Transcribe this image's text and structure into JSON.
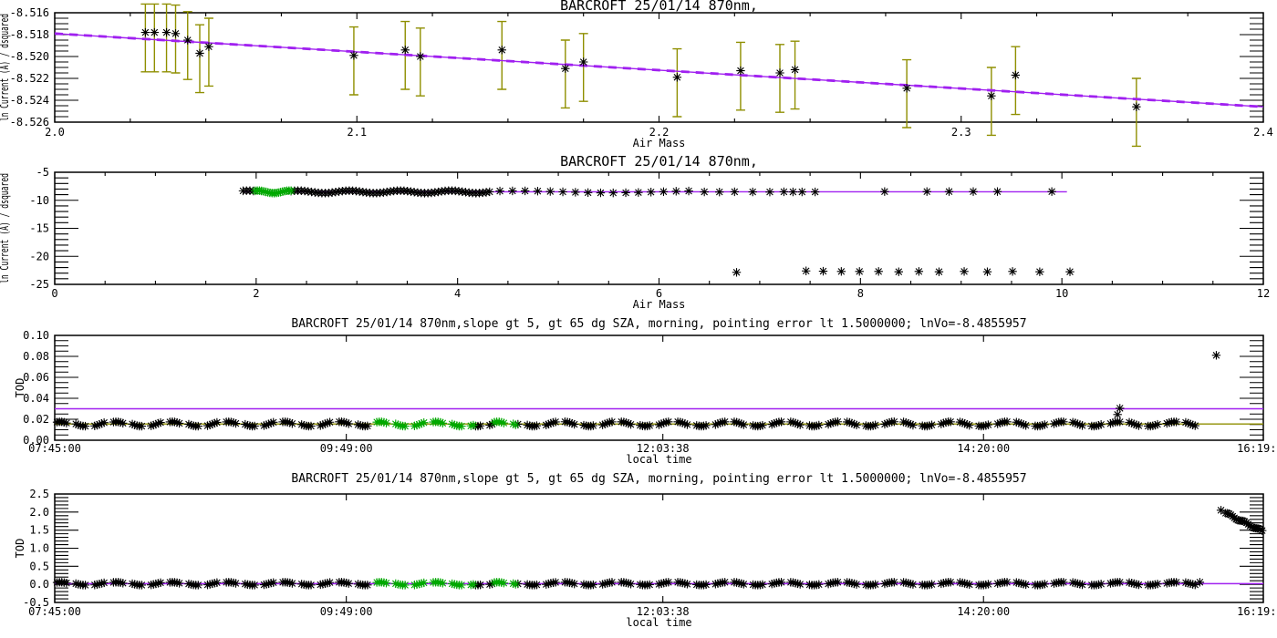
{
  "page": {
    "background": "#ffffff"
  },
  "colors": {
    "black": "#000000",
    "purple": "#A020F0",
    "olive": "#8F8F00",
    "green": "#00A800",
    "axis": "#000000",
    "background": "#FFFFFF"
  },
  "chart_data": [
    {
      "id": "langley-fit",
      "type": "scatter",
      "title": "BARCROFT 25/01/14 870nm,",
      "xlabel": "Air Mass",
      "ylabel": "ln Current (A) / dsquared",
      "xlim": [
        2.0,
        2.4
      ],
      "ylim": [
        -8.526,
        -8.516
      ],
      "xticks": {
        "values": [
          2.0,
          2.1,
          2.2,
          2.3,
          2.4
        ],
        "labels": [
          "2.0",
          "2.1",
          "2.2",
          "2.3",
          "2.4"
        ],
        "minor": 0.025
      },
      "yticks": {
        "values": [
          -8.526,
          -8.524,
          -8.522,
          -8.52,
          -8.518,
          -8.516
        ],
        "labels": [
          "-8.526",
          "-8.524",
          "-8.522",
          "-8.520",
          "-8.518",
          "-8.516"
        ],
        "minor": 0.0005
      },
      "ref_lines": [
        {
          "x": [
            2.0,
            2.4
          ],
          "y": [
            -8.5179,
            -8.5246
          ],
          "color_key": "purple",
          "dash": true
        }
      ],
      "series": [
        {
          "name": "langley-points",
          "color_key": "black",
          "marker": "asterisk",
          "error_bars": {
            "up": 0.0026,
            "down": 0.0036,
            "color_key": "olive"
          },
          "points": [
            [
              2.03,
              -8.5178
            ],
            [
              2.033,
              -8.5178
            ],
            [
              2.037,
              -8.5178
            ],
            [
              2.04,
              -8.5179
            ],
            [
              2.044,
              -8.5185
            ],
            [
              2.048,
              -8.5197
            ],
            [
              2.051,
              -8.5191
            ],
            [
              2.099,
              -8.5199
            ],
            [
              2.116,
              -8.5194
            ],
            [
              2.121,
              -8.52
            ],
            [
              2.148,
              -8.5194
            ],
            [
              2.169,
              -8.5211
            ],
            [
              2.175,
              -8.5205
            ],
            [
              2.206,
              -8.5219
            ],
            [
              2.227,
              -8.5213
            ],
            [
              2.24,
              -8.5215
            ],
            [
              2.245,
              -8.5212
            ],
            [
              2.282,
              -8.5229
            ],
            [
              2.31,
              -8.5236
            ],
            [
              2.318,
              -8.5217
            ],
            [
              2.358,
              -8.5246
            ]
          ]
        }
      ]
    },
    {
      "id": "langley-all",
      "type": "scatter",
      "title": "BARCROFT 25/01/14 870nm,",
      "xlabel": "Air Mass",
      "ylabel": "ln Current (A) / dsquared",
      "xlim": [
        0,
        12
      ],
      "ylim": [
        -25,
        -5
      ],
      "xticks": {
        "values": [
          0,
          2,
          4,
          6,
          8,
          10,
          12
        ],
        "labels": [
          "0",
          "2",
          "4",
          "6",
          "8",
          "10",
          "12"
        ],
        "minor": 0.5
      },
      "yticks": {
        "values": [
          -25,
          -20,
          -15,
          -10,
          -5
        ],
        "labels": [
          "-25",
          "-20",
          "-15",
          "-10",
          "-5"
        ],
        "minor": 1
      },
      "ref_lines": [
        {
          "x": [
            1.87,
            10.05
          ],
          "y": [
            -8.49,
            -8.49
          ],
          "color_key": "purple"
        }
      ],
      "series": [
        {
          "name": "all-points",
          "color_key": "black",
          "marker": "asterisk",
          "clusters": [
            {
              "x0": 1.87,
              "x1": 4.35,
              "step": 0.034,
              "y": -8.5,
              "jitter": 0.22,
              "exclude": [
                [
                  1.99,
                  2.345
                ]
              ]
            },
            {
              "x0": 4.42,
              "x1": 6.3,
              "step": 0.125,
              "y": -8.5,
              "jitter": 0.18
            }
          ],
          "points": [
            [
              6.45,
              -8.5
            ],
            [
              6.6,
              -8.52
            ],
            [
              6.75,
              -8.48
            ],
            [
              6.93,
              -8.5
            ],
            [
              7.1,
              -8.52
            ],
            [
              7.24,
              -8.48
            ],
            [
              7.33,
              -8.5
            ],
            [
              7.42,
              -8.5
            ],
            [
              7.55,
              -8.5
            ],
            [
              8.24,
              -8.45
            ],
            [
              8.66,
              -8.45
            ],
            [
              8.88,
              -8.45
            ],
            [
              9.12,
              -8.45
            ],
            [
              9.36,
              -8.45
            ],
            [
              9.9,
              -8.45
            ]
          ]
        },
        {
          "name": "morning-fit-points",
          "color_key": "green",
          "marker": "asterisk",
          "clusters": [
            {
              "x0": 1.99,
              "x1": 2.36,
              "step": 0.021,
              "y": -8.5,
              "jitter": 0.22
            }
          ]
        },
        {
          "name": "rejected-points",
          "color_key": "black",
          "marker": "asterisk",
          "points": [
            [
              6.77,
              -22.85
            ],
            [
              7.46,
              -22.6
            ],
            [
              7.63,
              -22.65
            ],
            [
              7.81,
              -22.7
            ],
            [
              7.99,
              -22.7
            ],
            [
              8.18,
              -22.7
            ],
            [
              8.38,
              -22.75
            ],
            [
              8.58,
              -22.7
            ],
            [
              8.78,
              -22.75
            ],
            [
              9.03,
              -22.7
            ],
            [
              9.26,
              -22.75
            ],
            [
              9.51,
              -22.7
            ],
            [
              9.78,
              -22.75
            ],
            [
              10.08,
              -22.75
            ]
          ]
        }
      ]
    },
    {
      "id": "tod-zoom",
      "type": "scatter",
      "title": "BARCROFT 25/01/14 870nm,slope gt 5, gt 65 dg SZA, morning, pointing error lt 1.5000000; lnVo=-8.4855957",
      "xlabel": "local time",
      "ylabel": "TOD",
      "xlim": [
        465,
        979
      ],
      "ylim": [
        0.0,
        0.1
      ],
      "xticks": {
        "values": [
          465,
          589,
          723.63,
          860,
          979
        ],
        "labels": [
          "07:45:00",
          "09:49:00",
          "12:03:38",
          "14:20:00",
          "16:19:00"
        ],
        "minor": 0
      },
      "yticks": {
        "values": [
          0.0,
          0.02,
          0.04,
          0.06,
          0.08,
          0.1
        ],
        "labels": [
          "0.00",
          "0.02",
          "0.04",
          "0.06",
          "0.08",
          "0.10"
        ],
        "minor": 0.005
      },
      "ref_lines": [
        {
          "y": 0.03,
          "color_key": "purple"
        },
        {
          "y": 0.0155,
          "color_key": "olive"
        }
      ],
      "series": [
        {
          "name": "tod-points",
          "color_key": "black",
          "marker": "asterisk",
          "clusters": [
            {
              "x0": 466,
              "x1": 950,
              "steps": [
                1,
                1,
                1,
                1,
                4
              ],
              "y": 0.0155,
              "jitter": 0.0021,
              "exclude": [
                [
                  601.5,
                  643
                ],
                [
                  652,
                  661.5
                ]
              ]
            }
          ],
          "points": [
            [
              917,
              0.0245
            ],
            [
              918,
              0.0305
            ],
            [
              959,
              0.081
            ]
          ]
        },
        {
          "name": "tod-morning-fit-points",
          "color_key": "green",
          "marker": "asterisk",
          "clusters": [
            {
              "x0": 602,
              "x1": 643,
              "steps": [
                1,
                1,
                1,
                1,
                4
              ],
              "y": 0.0155,
              "jitter": 0.0021
            },
            {
              "x0": 652,
              "x1": 661,
              "steps": [
                1,
                1,
                1,
                1,
                4
              ],
              "y": 0.0155,
              "jitter": 0.0021
            }
          ]
        }
      ]
    },
    {
      "id": "tod-wide",
      "type": "scatter",
      "title": "BARCROFT 25/01/14 870nm,slope gt 5, gt 65 dg SZA, morning, pointing error lt 1.5000000; lnVo=-8.4855957",
      "xlabel": "local time",
      "ylabel": "TOD",
      "xlim": [
        465,
        979
      ],
      "ylim": [
        -0.5,
        2.5
      ],
      "xticks": {
        "values": [
          465,
          589,
          723.63,
          860,
          979
        ],
        "labels": [
          "07:45:00",
          "09:49:00",
          "12:03:38",
          "14:20:00",
          "16:19:00"
        ],
        "minor": 0
      },
      "yticks": {
        "values": [
          -0.5,
          0.0,
          0.5,
          1.0,
          1.5,
          2.0,
          2.5
        ],
        "labels": [
          "-0.5",
          "0.0",
          "0.5",
          "1.0",
          "1.5",
          "2.0",
          "2.5"
        ],
        "minor": 0.1
      },
      "ref_lines": [
        {
          "y": 0.02,
          "color_key": "purple"
        }
      ],
      "series": [
        {
          "name": "tod-points-wide",
          "color_key": "black",
          "marker": "asterisk",
          "clusters": [
            {
              "x0": 466,
              "x1": 950,
              "steps": [
                1,
                1,
                1,
                1,
                4
              ],
              "y": 0.02,
              "jitter": 0.04,
              "exclude": [
                [
                  601.5,
                  643
                ],
                [
                  652,
                  661.5
                ]
              ]
            }
          ],
          "points": [
            [
              952,
              0.06
            ],
            [
              961,
              2.05
            ]
          ],
          "ramp": {
            "x0": 963,
            "x1": 978.5,
            "count": 22,
            "y0": 1.97,
            "y1": 1.47,
            "jitter": 0.03
          }
        },
        {
          "name": "tod-morning-fit-points-wide",
          "color_key": "green",
          "marker": "asterisk",
          "clusters": [
            {
              "x0": 602,
              "x1": 643,
              "steps": [
                1,
                1,
                1,
                1,
                4
              ],
              "y": 0.02,
              "jitter": 0.04
            },
            {
              "x0": 652,
              "x1": 661,
              "steps": [
                1,
                1,
                1,
                1,
                4
              ],
              "y": 0.02,
              "jitter": 0.04
            }
          ]
        }
      ]
    }
  ]
}
